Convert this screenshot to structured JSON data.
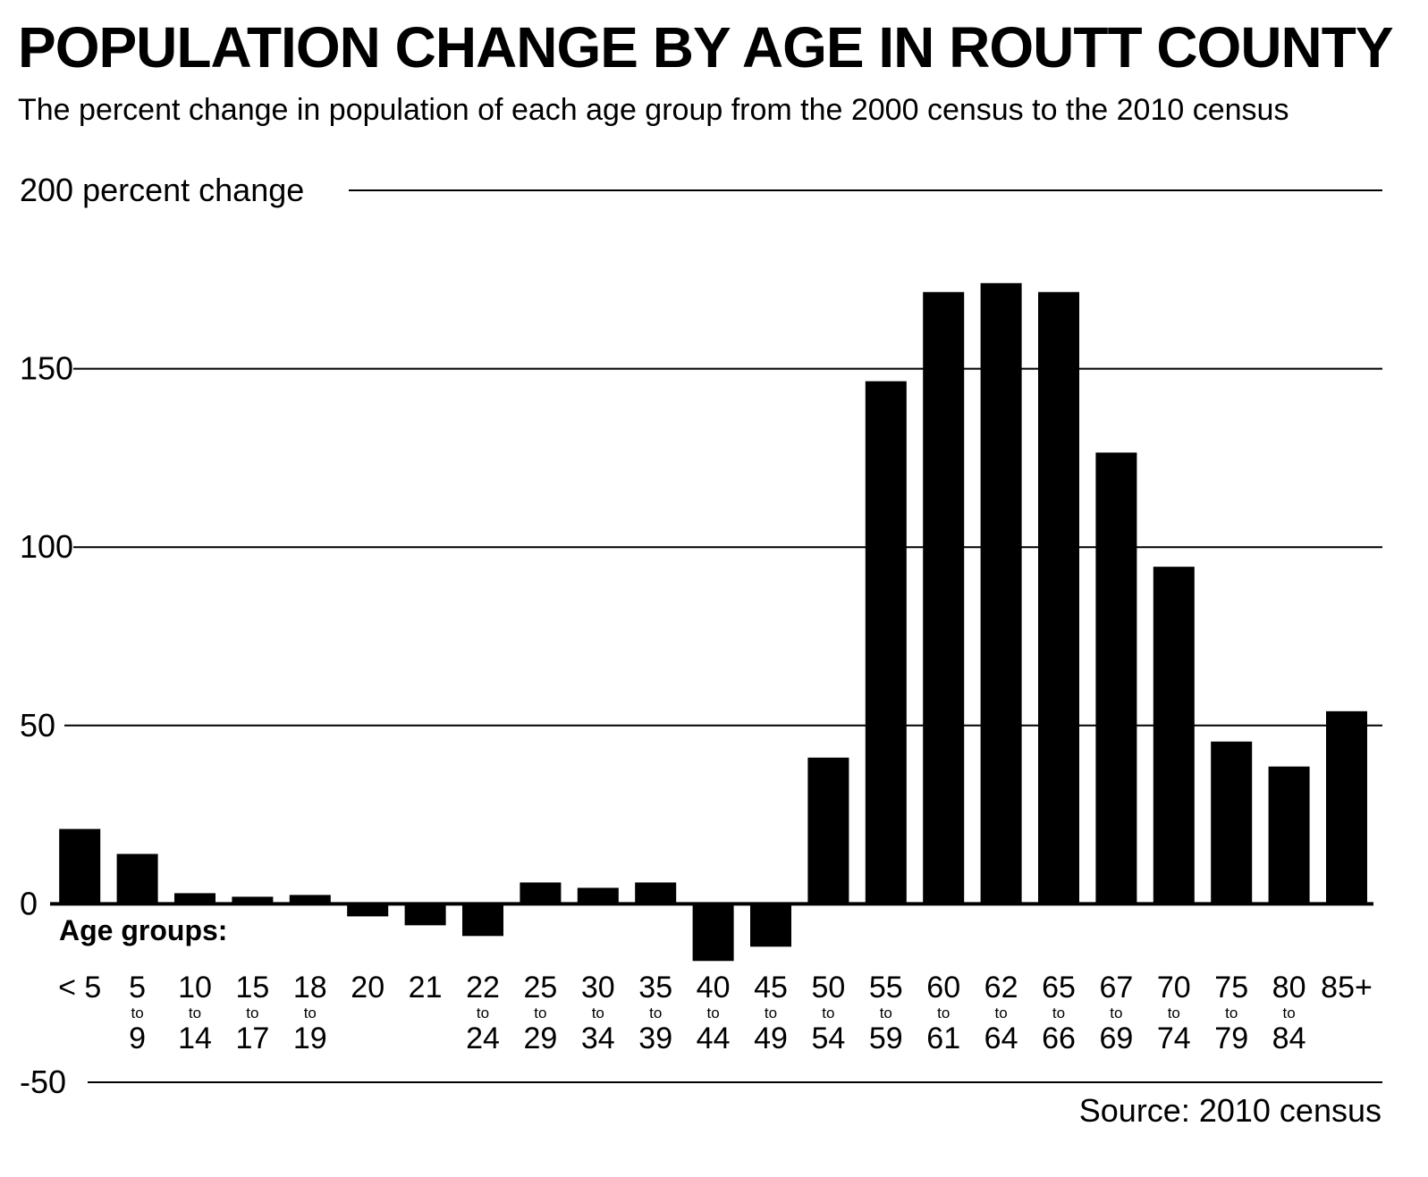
{
  "title": "POPULATION CHANGE BY AGE IN ROUTT COUNTY",
  "subtitle": "The percent change in population of each age group from the 2000 census to the 2010 census",
  "source": "Source: 2010 census",
  "colors": {
    "bar": "#000000",
    "grid": "#000000",
    "background": "#ffffff"
  },
  "chart_data": {
    "type": "bar",
    "xlabel": "Age groups:",
    "ylabel": "percent change",
    "ylim": [
      -50,
      200
    ],
    "yticks": [
      -50,
      0,
      50,
      100,
      150,
      200
    ],
    "ytick_labels": [
      "-50",
      "0",
      "50",
      "100",
      "150",
      "200 percent change"
    ],
    "grid": true,
    "categories": [
      {
        "top": "< 5",
        "mid": "",
        "bottom": ""
      },
      {
        "top": "5",
        "mid": "to",
        "bottom": "9"
      },
      {
        "top": "10",
        "mid": "to",
        "bottom": "14"
      },
      {
        "top": "15",
        "mid": "to",
        "bottom": "17"
      },
      {
        "top": "18",
        "mid": "to",
        "bottom": "19"
      },
      {
        "top": "20",
        "mid": "",
        "bottom": ""
      },
      {
        "top": "21",
        "mid": "",
        "bottom": ""
      },
      {
        "top": "22",
        "mid": "to",
        "bottom": "24"
      },
      {
        "top": "25",
        "mid": "to",
        "bottom": "29"
      },
      {
        "top": "30",
        "mid": "to",
        "bottom": "34"
      },
      {
        "top": "35",
        "mid": "to",
        "bottom": "39"
      },
      {
        "top": "40",
        "mid": "to",
        "bottom": "44"
      },
      {
        "top": "45",
        "mid": "to",
        "bottom": "49"
      },
      {
        "top": "50",
        "mid": "to",
        "bottom": "54"
      },
      {
        "top": "55",
        "mid": "to",
        "bottom": "59"
      },
      {
        "top": "60",
        "mid": "to",
        "bottom": "61"
      },
      {
        "top": "62",
        "mid": "to",
        "bottom": "64"
      },
      {
        "top": "65",
        "mid": "to",
        "bottom": "66"
      },
      {
        "top": "67",
        "mid": "to",
        "bottom": "69"
      },
      {
        "top": "70",
        "mid": "to",
        "bottom": "74"
      },
      {
        "top": "75",
        "mid": "to",
        "bottom": "79"
      },
      {
        "top": "80",
        "mid": "to",
        "bottom": "84"
      },
      {
        "top": "85+",
        "mid": "",
        "bottom": ""
      }
    ],
    "values": [
      21,
      14,
      3,
      2,
      2.5,
      -3.5,
      -6,
      -9,
      6,
      4.5,
      6,
      -16,
      -12,
      41,
      146.5,
      171.5,
      174,
      171.5,
      126.5,
      94.5,
      45.5,
      38.5,
      54
    ]
  }
}
